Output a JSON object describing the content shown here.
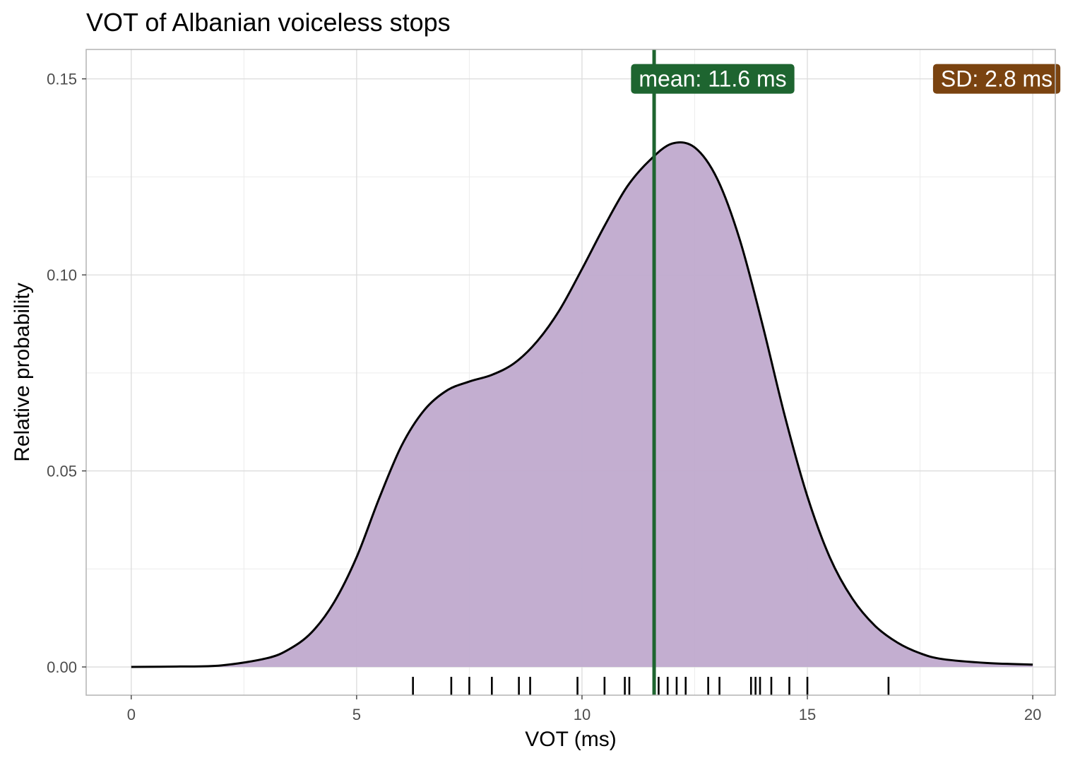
{
  "chart_data": {
    "type": "area",
    "title": "VOT of Albanian voiceless stops",
    "xlabel": "VOT (ms)",
    "ylabel": "Relative probability",
    "xlim": [
      -1,
      20.5
    ],
    "ylim": [
      -0.0072,
      0.1575
    ],
    "x_ticks": [
      0,
      5,
      10,
      15,
      20
    ],
    "x_tick_labels": [
      "0",
      "5",
      "10",
      "15",
      "20"
    ],
    "y_ticks": [
      0,
      0.05,
      0.1,
      0.15
    ],
    "y_tick_labels": [
      "0.00",
      "0.05",
      "0.10",
      "0.15"
    ],
    "grid": true,
    "density": {
      "x": [
        0,
        1,
        2,
        3,
        3.5,
        4,
        4.5,
        5,
        5.5,
        6,
        6.5,
        7,
        7.5,
        8,
        8.5,
        9,
        9.5,
        10,
        10.5,
        11,
        11.5,
        12,
        12.5,
        13,
        13.5,
        14,
        14.5,
        15,
        15.5,
        16,
        16.5,
        17,
        17.5,
        18,
        19,
        20
      ],
      "y": [
        0.0,
        0.0001,
        0.0004,
        0.0022,
        0.0045,
        0.0088,
        0.0165,
        0.028,
        0.043,
        0.0565,
        0.0655,
        0.0705,
        0.0728,
        0.0745,
        0.0775,
        0.083,
        0.091,
        0.1015,
        0.1125,
        0.1225,
        0.1292,
        0.1335,
        0.1325,
        0.1245,
        0.109,
        0.0875,
        0.064,
        0.0435,
        0.0279,
        0.0174,
        0.0105,
        0.0062,
        0.0035,
        0.002,
        0.001,
        0.0006
      ]
    },
    "rug": [
      6.25,
      7.1,
      7.5,
      8.0,
      8.6,
      8.85,
      9.9,
      10.5,
      10.95,
      11.05,
      11.7,
      11.9,
      12.1,
      12.3,
      12.8,
      13.05,
      13.75,
      13.85,
      13.95,
      14.2,
      14.6,
      15.0,
      16.8
    ],
    "mean_line": {
      "x": 11.6,
      "label": "mean: 11.6 ms"
    },
    "sd_label": "SD: 2.8 ms",
    "colors": {
      "fill": "#c0aacd",
      "curve": "#000000",
      "mean_line": "#1e6530",
      "mean_box": "#1e6530",
      "sd_box": "#7a4310",
      "grid": "#dcdcdc",
      "panel_border": "#b3b3b3"
    }
  }
}
